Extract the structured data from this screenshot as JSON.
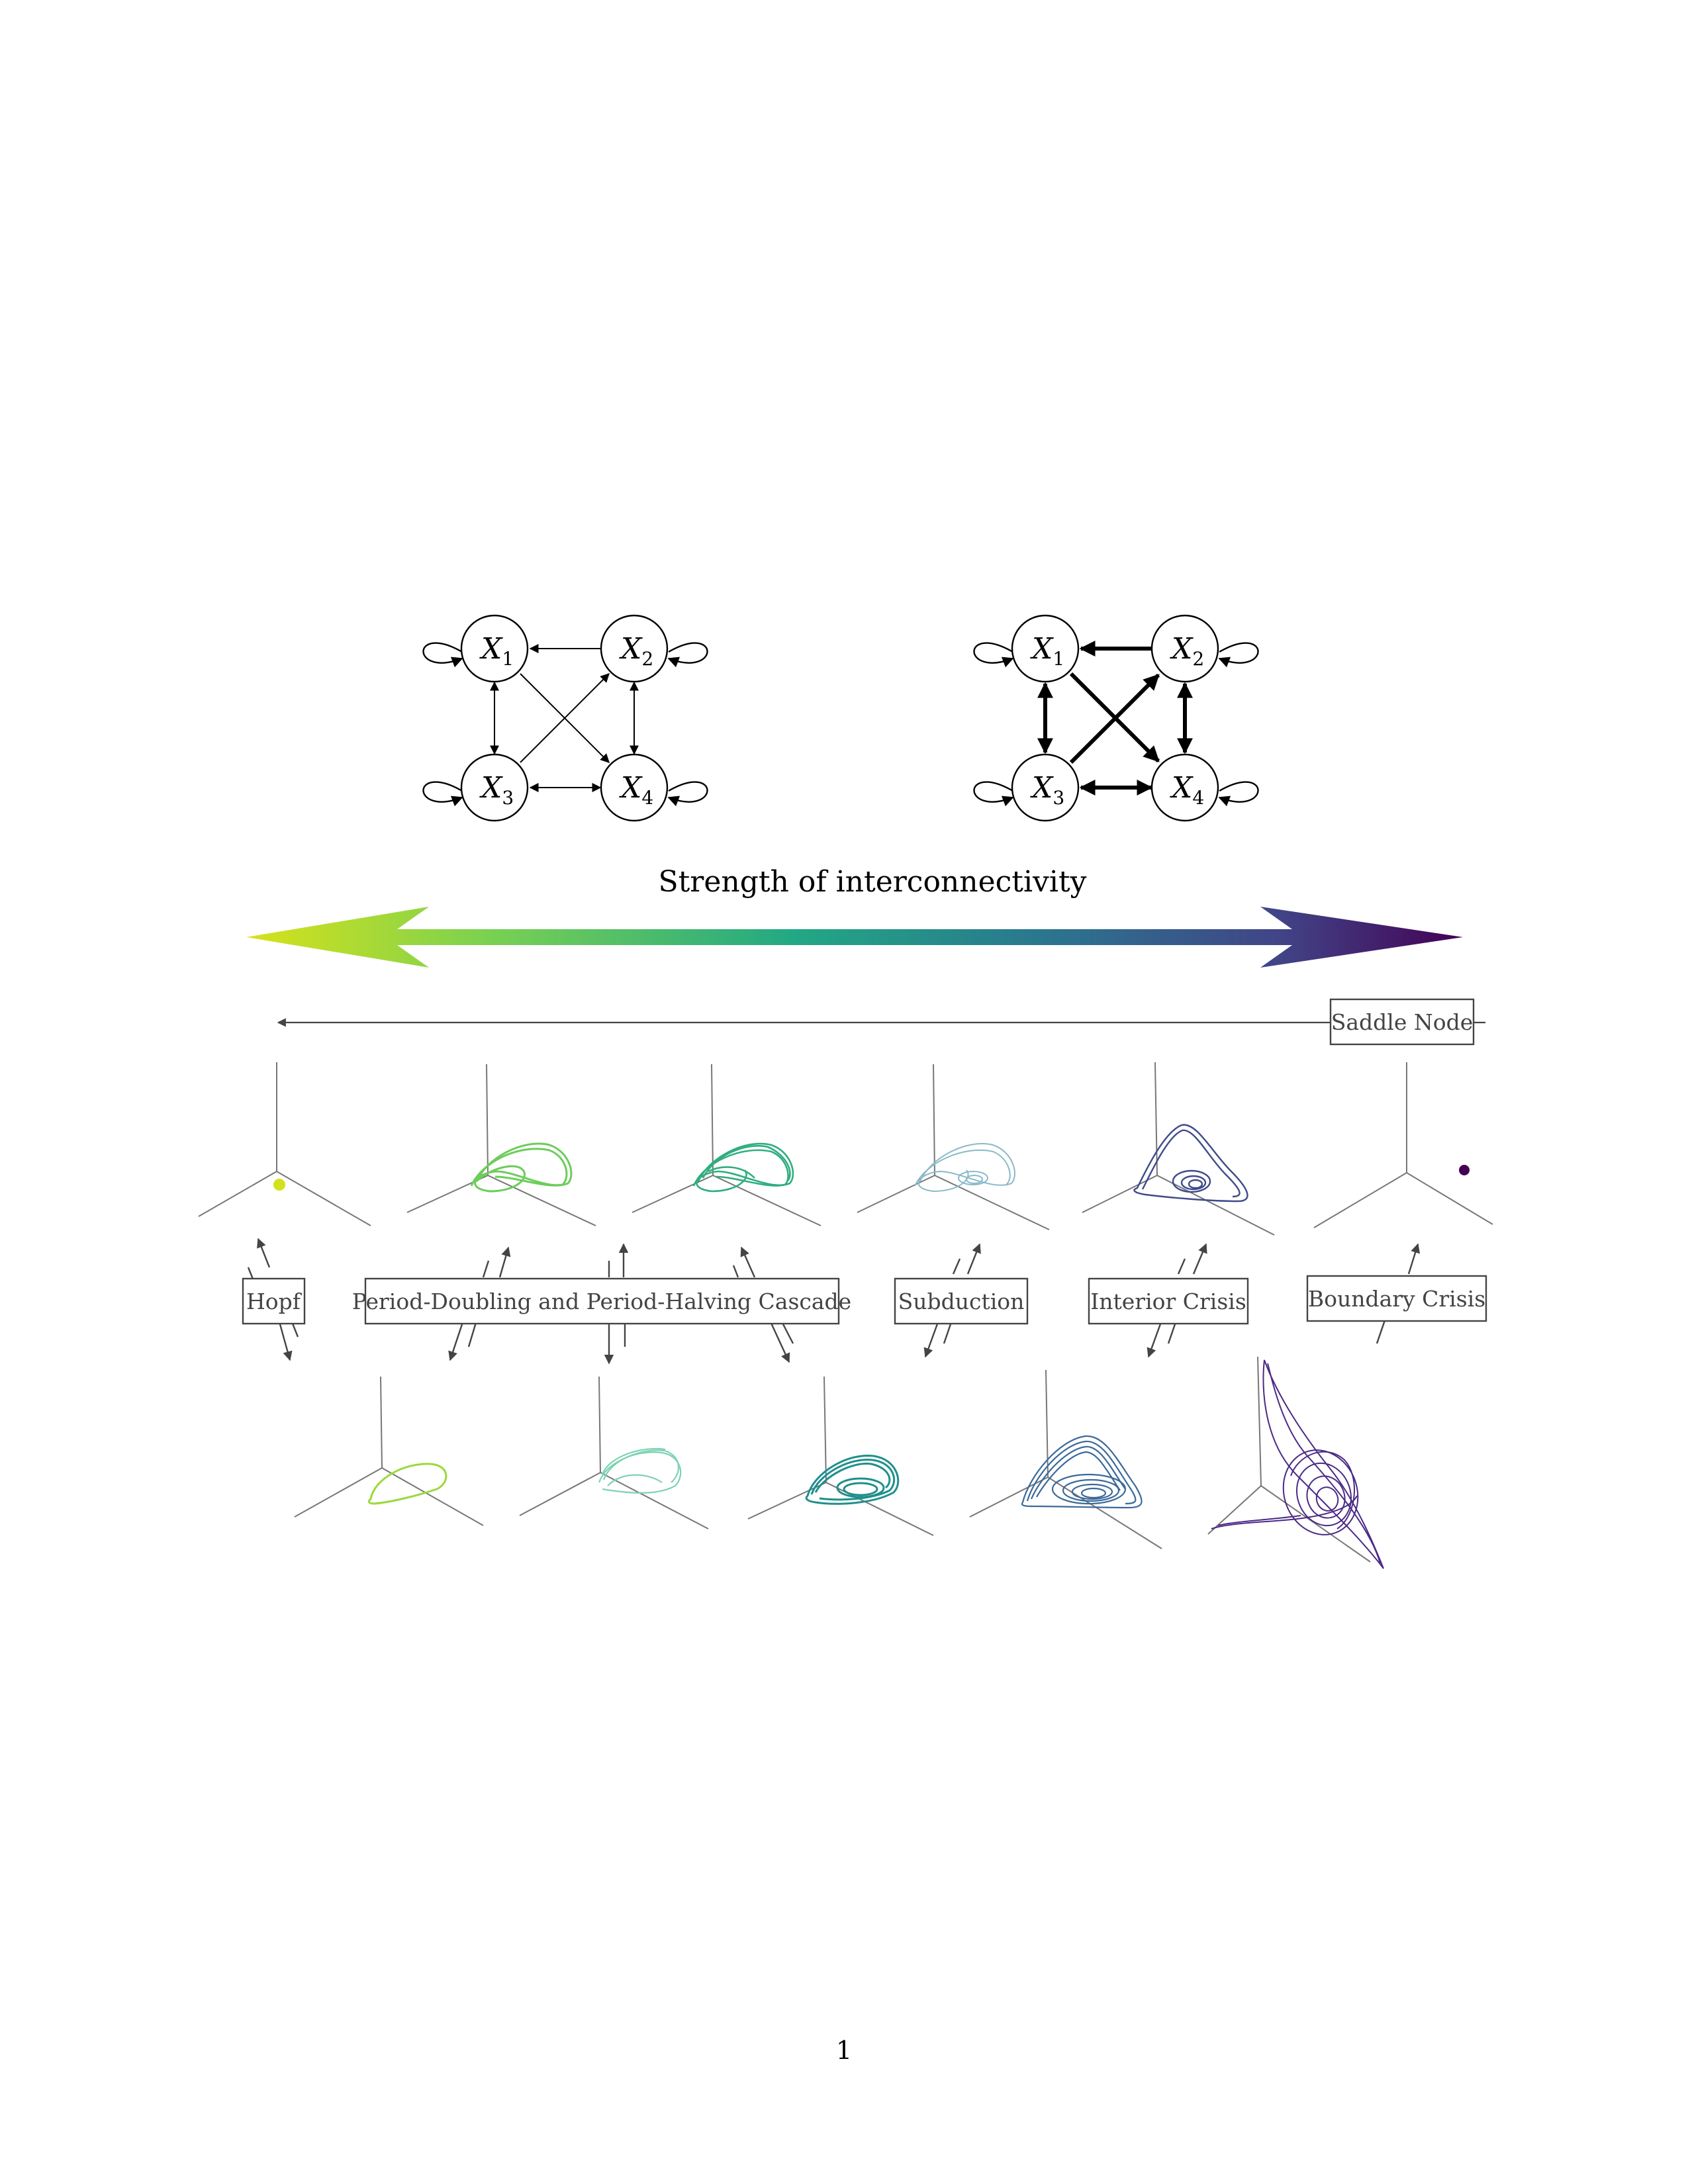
{
  "graphs": {
    "weak": {
      "nodes": [
        {
          "name": "X",
          "sub": "1"
        },
        {
          "name": "X",
          "sub": "2"
        },
        {
          "name": "X",
          "sub": "3"
        },
        {
          "name": "X",
          "sub": "4"
        }
      ],
      "connection_strength": "thin"
    },
    "strong": {
      "nodes": [
        {
          "name": "X",
          "sub": "1"
        },
        {
          "name": "X",
          "sub": "2"
        },
        {
          "name": "X",
          "sub": "3"
        },
        {
          "name": "X",
          "sub": "4"
        }
      ],
      "connection_strength": "thick"
    }
  },
  "strength_arrow": {
    "label": "Strength of interconnectivity",
    "gradient": [
      "#d8e219",
      "#7ad151",
      "#22a884",
      "#2a788e",
      "#414487",
      "#440154"
    ]
  },
  "bifurcations": {
    "saddle_node": "Saddle Node",
    "hopf": "Hopf",
    "period_doubling": "Period-Doubling and Period-Halving Cascade",
    "subduction": "Subduction",
    "interior_crisis": "Interior Crisis",
    "boundary_crisis": "Boundary Crisis"
  },
  "attractors_top": [
    {
      "type": "fixed point",
      "color": "#d2e21b"
    },
    {
      "type": "period-2 limit cycle",
      "color": "#6ccd5a"
    },
    {
      "type": "period-4 limit cycle",
      "color": "#2fae7f"
    },
    {
      "type": "subducted cycle",
      "color": "#8ab9c9"
    },
    {
      "type": "chaotic attractor",
      "color": "#3f4a8a"
    },
    {
      "type": "fixed point",
      "color": "#440154"
    }
  ],
  "attractors_bottom": [
    {
      "type": "limit cycle",
      "color": "#9bd93c"
    },
    {
      "type": "multi-loop cycle",
      "color": "#7fd3b3"
    },
    {
      "type": "multi-loop cycle",
      "color": "#1f8f8c"
    },
    {
      "type": "chaotic attractor",
      "color": "#3b6a99"
    },
    {
      "type": "chaotic attractor",
      "color": "#4b2a86"
    }
  ],
  "page_number": "1"
}
